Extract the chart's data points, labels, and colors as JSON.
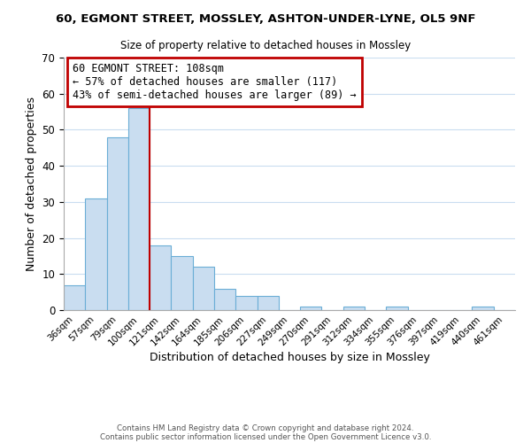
{
  "title1": "60, EGMONT STREET, MOSSLEY, ASHTON-UNDER-LYNE, OL5 9NF",
  "title2": "Size of property relative to detached houses in Mossley",
  "xlabel": "Distribution of detached houses by size in Mossley",
  "ylabel": "Number of detached properties",
  "bar_labels": [
    "36sqm",
    "57sqm",
    "79sqm",
    "100sqm",
    "121sqm",
    "142sqm",
    "164sqm",
    "185sqm",
    "206sqm",
    "227sqm",
    "249sqm",
    "270sqm",
    "291sqm",
    "312sqm",
    "334sqm",
    "355sqm",
    "376sqm",
    "397sqm",
    "419sqm",
    "440sqm",
    "461sqm"
  ],
  "bar_values": [
    7,
    31,
    48,
    56,
    18,
    15,
    12,
    6,
    4,
    4,
    0,
    1,
    0,
    1,
    0,
    1,
    0,
    0,
    0,
    1,
    0
  ],
  "bar_color": "#c9ddf0",
  "bar_edge_color": "#6baed6",
  "ref_line_x": 3.5,
  "annotation_title": "60 EGMONT STREET: 108sqm",
  "annotation_line1": "← 57% of detached houses are smaller (117)",
  "annotation_line2": "43% of semi-detached houses are larger (89) →",
  "annotation_border_color": "#c00000",
  "ylim": [
    0,
    70
  ],
  "yticks": [
    0,
    10,
    20,
    30,
    40,
    50,
    60,
    70
  ],
  "footer1": "Contains HM Land Registry data © Crown copyright and database right 2024.",
  "footer2": "Contains public sector information licensed under the Open Government Licence v3.0.",
  "fig_bg": "#ffffff",
  "grid_color": "#c9ddf0",
  "ref_line_color": "#c00000"
}
